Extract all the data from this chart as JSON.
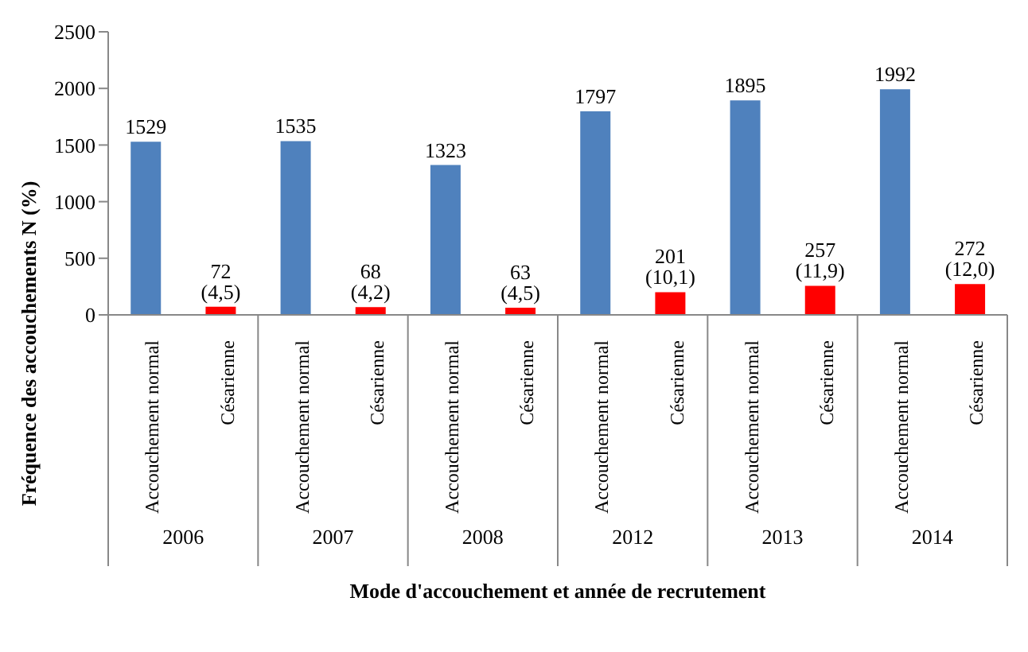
{
  "chart_data": {
    "type": "bar",
    "ylabel": "Fréquence des accouchements N (%)",
    "xlabel": "Mode d'accouchement et année de recrutement",
    "categories": [
      "Accouchement normal",
      "Césarienne",
      "Accouchement normal",
      "Césarienne",
      "Accouchement normal",
      "Césarienne",
      "Accouchement normal",
      "Césarienne",
      "Accouchement normal",
      "Césarienne",
      "Accouchement normal",
      "Césarienne"
    ],
    "values": [
      1529,
      72,
      1535,
      68,
      1323,
      63,
      1797,
      201,
      1895,
      257,
      1992,
      272
    ],
    "value_labels": [
      "1529",
      "72 (4,5)",
      "1535",
      "68 (4,2)",
      "1323",
      "63 (4,5)",
      "1797",
      "201 (10,1)",
      "1895",
      "257 (11,9)",
      "1992",
      "272 (12,0)"
    ],
    "colors": [
      "#4f81bd",
      "#ff0000",
      "#4f81bd",
      "#ff0000",
      "#4f81bd",
      "#ff0000",
      "#4f81bd",
      "#ff0000",
      "#4f81bd",
      "#ff0000",
      "#4f81bd",
      "#ff0000"
    ],
    "annotations": [
      "2006",
      "2007",
      "2008",
      "2012",
      "2013",
      "2014"
    ],
    "ylim": [
      0,
      2500
    ],
    "yticks": [
      0,
      500,
      1000,
      1500,
      2000,
      2500
    ],
    "grid": false,
    "legend": false
  }
}
